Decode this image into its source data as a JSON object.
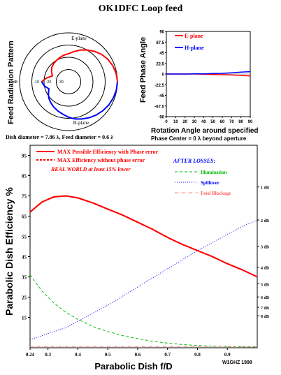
{
  "page": {
    "title": "OK1DFC Loop feed",
    "credit": "W1GHZ 1998",
    "dish_note": "Dish diameter = 7.86 λ, Feed diameter = 0.6 λ",
    "phase_note": "Phase Center = 0 λ beyond aperture"
  },
  "chart_data": [
    {
      "type": "polar",
      "ylabel": "Feed Radiation Pattern",
      "rings_db": [
        0,
        -10,
        -20,
        -30
      ],
      "ring_labels": [
        "0 dB",
        "-10",
        "-20",
        "-30"
      ],
      "plane_labels": [
        "E-plane",
        "H-plane"
      ],
      "series": [
        {
          "name": "E-plane",
          "color": "#ff0000",
          "angle_deg": [
            0,
            10,
            20,
            30,
            40,
            50,
            60,
            70,
            80,
            90,
            100,
            110,
            120,
            130,
            140,
            150,
            160,
            170,
            180
          ],
          "db": [
            0,
            -0.5,
            -1.5,
            -3,
            -5,
            -7.5,
            -10,
            -12.5,
            -15,
            -17,
            -18,
            -19,
            -20,
            -21,
            -22,
            -24,
            -26,
            -22,
            -18
          ]
        },
        {
          "name": "H-plane",
          "color": "#0000ff",
          "angle_deg": [
            0,
            10,
            20,
            30,
            40,
            50,
            60,
            70,
            80,
            90,
            100,
            110,
            120,
            130,
            140,
            150,
            160,
            170,
            180
          ],
          "db": [
            0,
            -0.3,
            -1,
            -2,
            -3.2,
            -4.5,
            -6,
            -7.5,
            -9,
            -11,
            -13,
            -14.5,
            -16,
            -17.5,
            -19,
            -21,
            -23,
            -20,
            -18
          ]
        }
      ]
    },
    {
      "type": "line",
      "ylabel": "Feed Phase Angle",
      "xlabel": "Rotation Angle around specified",
      "xlim": [
        0,
        90
      ],
      "ylim": [
        -90,
        90
      ],
      "x_ticks": [
        0,
        10,
        20,
        30,
        40,
        50,
        60,
        70,
        80,
        90
      ],
      "y_ticks": [
        90,
        67.5,
        45,
        22.5,
        0,
        -22.5,
        -45,
        -67.5,
        -90
      ],
      "y_tick_labels": [
        "90",
        "67.5",
        "45",
        "22.5",
        "0",
        "-22.5",
        "-45",
        "-67.5",
        "-90"
      ],
      "series": [
        {
          "name": "E-plane",
          "color": "#ff0000",
          "x": [
            0,
            10,
            20,
            30,
            40,
            50,
            60,
            70,
            80,
            90
          ],
          "y": [
            0,
            0,
            0,
            0,
            -0.5,
            -1,
            -1.5,
            -2,
            -3,
            -4
          ]
        },
        {
          "name": "H-plane",
          "color": "#0000ff",
          "x": [
            0,
            10,
            20,
            30,
            40,
            50,
            60,
            70,
            80,
            90
          ],
          "y": [
            0,
            0,
            0,
            0.5,
            0.5,
            1,
            1.5,
            2.5,
            4,
            5
          ]
        }
      ]
    },
    {
      "type": "line",
      "xlabel": "Parabolic Dish f/D",
      "ylabel": "Parabolic Dish Efficiency %",
      "xlim": [
        0.24,
        1.0
      ],
      "ylim": [
        0,
        100
      ],
      "x_ticks": [
        0.24,
        0.3,
        0.4,
        0.5,
        0.6,
        0.7,
        0.8,
        0.9
      ],
      "x_tick_labels": [
        "0.24",
        "0.3",
        "0.4",
        "0.5",
        "0.6",
        "0.7",
        "0.8",
        "0.9"
      ],
      "y_ticks": [
        15,
        25,
        35,
        45,
        55,
        65,
        75,
        85,
        95
      ],
      "y_tick_labels": [
        "15",
        "25",
        "35",
        "45",
        "55",
        "65",
        "75",
        "85",
        "95"
      ],
      "loss_ticks_db": [
        "1 dB",
        "2 dB",
        "3 dB",
        "4 dB",
        "5 dB",
        "6 dB",
        "7 dB",
        "8 dB"
      ],
      "loss_tick_pct": [
        79.4,
        63.1,
        50.1,
        39.8,
        31.6,
        25.1,
        20,
        15.8
      ],
      "legend": {
        "main": [
          "MAX Possible Efficiency with Phase error",
          "MAX Efficiency without phase error"
        ],
        "real_world": "REAL WORLD at least 15% lower",
        "losses_title": "AFTER LOSSES:",
        "losses": [
          "Illumination",
          "Spillover",
          "Feed Blockage"
        ]
      },
      "series": [
        {
          "name": "MAX Possible Efficiency with Phase error",
          "color": "#ff0000",
          "x": [
            0.24,
            0.28,
            0.32,
            0.36,
            0.4,
            0.45,
            0.5,
            0.55,
            0.6,
            0.65,
            0.7,
            0.75,
            0.8,
            0.85,
            0.9,
            0.95,
            1.0
          ],
          "y": [
            67,
            72,
            74.5,
            75,
            74,
            71.5,
            68.5,
            65.5,
            62,
            58.5,
            54.5,
            51,
            48,
            45,
            41.5,
            38.5,
            35
          ]
        },
        {
          "name": "MAX Efficiency without phase error",
          "color": "#ff0000",
          "x": [
            0.24,
            0.28,
            0.32,
            0.36,
            0.4,
            0.45,
            0.5,
            0.55,
            0.6,
            0.65,
            0.7,
            0.75,
            0.8,
            0.85,
            0.9,
            0.95,
            1.0
          ],
          "y": [
            67,
            72,
            74.5,
            75,
            74,
            71.5,
            68.5,
            65.5,
            62,
            58.5,
            54.5,
            51,
            48,
            45,
            41.5,
            38.5,
            35
          ]
        },
        {
          "name": "Illumination",
          "color": "#00bb00",
          "x": [
            0.24,
            0.28,
            0.32,
            0.36,
            0.4,
            0.45,
            0.5,
            0.55,
            0.6,
            0.65,
            0.7,
            0.75,
            0.8,
            0.85,
            0.9,
            0.95,
            1.0
          ],
          "y": [
            36,
            28,
            22,
            17.5,
            14,
            10.5,
            8,
            6,
            4.5,
            3.2,
            2.3,
            1.6,
            1.1,
            0.8,
            0.6,
            0.5,
            0.4
          ]
        },
        {
          "name": "Spillover",
          "color": "#0000ff",
          "x": [
            0.24,
            0.28,
            0.32,
            0.36,
            0.4,
            0.45,
            0.5,
            0.55,
            0.6,
            0.65,
            0.7,
            0.75,
            0.8,
            0.85,
            0.9,
            0.95,
            1.0
          ],
          "y": [
            4,
            6,
            8,
            10,
            13,
            17,
            21,
            25.5,
            30,
            34.5,
            39,
            43.5,
            48,
            52,
            56,
            60,
            63
          ]
        },
        {
          "name": "Feed Blockage",
          "color": "#ff8080",
          "x": [
            0.24,
            0.3,
            0.4,
            0.5,
            0.6,
            0.7,
            0.8,
            0.9,
            1.0
          ],
          "y": [
            0.6,
            0.6,
            0.6,
            0.6,
            0.6,
            0.6,
            0.6,
            0.6,
            0.6
          ]
        }
      ]
    }
  ]
}
